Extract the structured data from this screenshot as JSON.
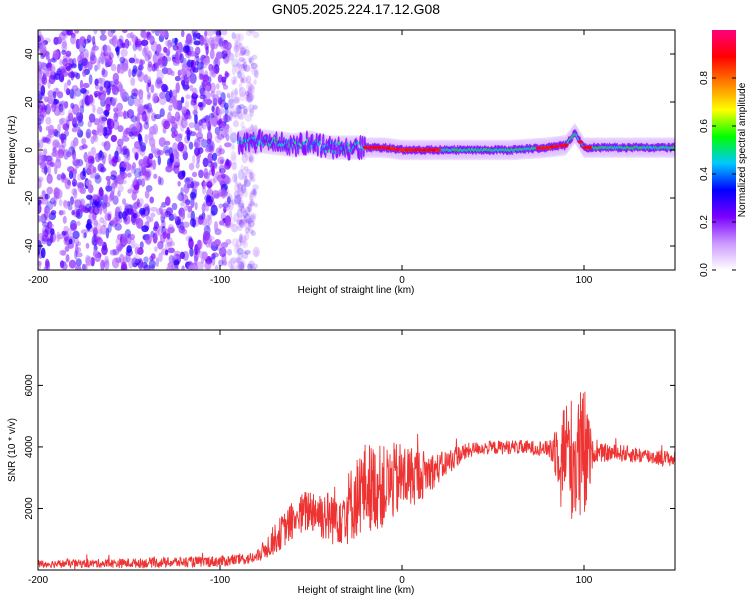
{
  "title": "GN05.2025.224.17.12.G08",
  "chart_data": [
    {
      "type": "heatmap",
      "xlabel": "Height of straight line (km)",
      "ylabel": "Frequency (Hz)",
      "xlim": [
        -200,
        150
      ],
      "ylim": [
        -50,
        50
      ],
      "xticks": [
        -200,
        -100,
        0,
        100
      ],
      "yticks": [
        -40,
        -20,
        0,
        20,
        40
      ],
      "colorbar": {
        "label": "Normalized spectral amplitude",
        "range": [
          0,
          1
        ],
        "ticks": [
          0.0,
          0.2,
          0.4,
          0.6,
          0.8
        ],
        "tick_labels": [
          "0.0",
          "0.2",
          "0.4",
          "0.6",
          "0.8"
        ],
        "colors": [
          "#ffffff",
          "#cc99ff",
          "#7a00ff",
          "#0000ff",
          "#00c8ff",
          "#00ff00",
          "#ffff00",
          "#ff8000",
          "#ff0000",
          "#ff007f"
        ]
      },
      "features": {
        "noise_region_x": [
          -200,
          -80
        ],
        "signal_start_x": -90,
        "signal_track": [
          [
            -90,
            3
          ],
          [
            -80,
            4
          ],
          [
            -70,
            3
          ],
          [
            -60,
            2
          ],
          [
            -50,
            3
          ],
          [
            -40,
            1
          ],
          [
            -30,
            1
          ],
          [
            -20,
            1
          ],
          [
            -10,
            1
          ],
          [
            0,
            0
          ],
          [
            20,
            0
          ],
          [
            40,
            0
          ],
          [
            60,
            0
          ],
          [
            80,
            1
          ],
          [
            90,
            2
          ],
          [
            95,
            7
          ],
          [
            100,
            1
          ],
          [
            120,
            1
          ],
          [
            150,
            1
          ]
        ],
        "high_amplitude_segments_x": [
          [
            -20,
            20
          ],
          [
            75,
            90
          ],
          [
            98,
            103
          ]
        ]
      }
    },
    {
      "type": "line",
      "xlabel": "Height of straight line (km)",
      "ylabel": "SNR (10 * v/v)",
      "xlim": [
        -200,
        150
      ],
      "ylim": [
        0,
        7800
      ],
      "xticks": [
        -200,
        -100,
        0,
        100
      ],
      "yticks": [
        2000,
        4000,
        6000
      ],
      "series": [
        {
          "color": "#ee3333",
          "envelope": [
            [
              -200,
              200
            ],
            [
              -150,
              220
            ],
            [
              -100,
              280
            ],
            [
              -80,
              400
            ],
            [
              -70,
              1000
            ],
            [
              -60,
              1600
            ],
            [
              -50,
              2000
            ],
            [
              -40,
              1700
            ],
            [
              -30,
              2000
            ],
            [
              -20,
              2700
            ],
            [
              -10,
              2700
            ],
            [
              0,
              3000
            ],
            [
              10,
              3100
            ],
            [
              20,
              3300
            ],
            [
              30,
              3700
            ],
            [
              40,
              3950
            ],
            [
              60,
              4000
            ],
            [
              80,
              3950
            ],
            [
              90,
              3900
            ],
            [
              95,
              3500
            ],
            [
              100,
              3600
            ],
            [
              105,
              3800
            ],
            [
              120,
              3800
            ],
            [
              150,
              3600
            ]
          ],
          "noise": [
            [
              -200,
              120
            ],
            [
              -80,
              200
            ],
            [
              -70,
              500
            ],
            [
              -40,
              900
            ],
            [
              -20,
              1500
            ],
            [
              0,
              1200
            ],
            [
              20,
              500
            ],
            [
              40,
              220
            ],
            [
              80,
              250
            ],
            [
              90,
              1800
            ],
            [
              100,
              2500
            ],
            [
              105,
              300
            ],
            [
              150,
              250
            ]
          ]
        }
      ]
    }
  ]
}
